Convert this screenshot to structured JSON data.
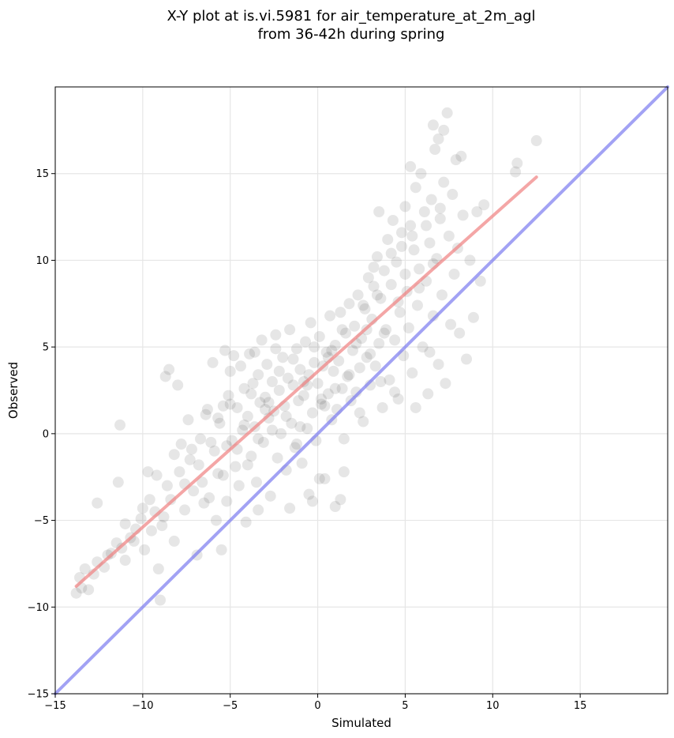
{
  "chart_data": {
    "type": "scatter",
    "title": "X-Y plot at is.vi.5981 for air_temperature_at_2m_agl",
    "subtitle": "from 36-42h during spring",
    "xlabel": "Simulated",
    "ylabel": "Observed",
    "xlim": [
      -15,
      20
    ],
    "ylim": [
      -15,
      20
    ],
    "xticks": [
      -15,
      -10,
      -5,
      0,
      5,
      10,
      15
    ],
    "yticks": [
      -15,
      -10,
      -5,
      0,
      5,
      10,
      15
    ],
    "xtick_labels": [
      "−15",
      "−10",
      "−5",
      "0",
      "5",
      "10",
      "15"
    ],
    "ytick_labels": [
      "−15",
      "−10",
      "−5",
      "0",
      "5",
      "10",
      "15"
    ],
    "grid": true,
    "point_color": "#333333",
    "regression_line": {
      "x": [
        -13.8,
        12.5
      ],
      "y": [
        -8.8,
        14.8
      ],
      "color": "#f08080"
    },
    "identity_line": {
      "x": [
        -15,
        20
      ],
      "y": [
        -15,
        20
      ],
      "color": "#7b7bf0"
    },
    "points": [
      [
        -13.8,
        -9.2
      ],
      [
        -13.5,
        -8.9
      ],
      [
        -13.3,
        -7.8
      ],
      [
        -13.1,
        -9.0
      ],
      [
        -13.6,
        -8.3
      ],
      [
        -12.8,
        -8.1
      ],
      [
        -12.6,
        -7.4
      ],
      [
        -12.2,
        -7.7
      ],
      [
        -12.6,
        -4.0
      ],
      [
        -11.8,
        -6.9
      ],
      [
        -11.5,
        -6.3
      ],
      [
        -11.2,
        -6.6
      ],
      [
        -11.4,
        -2.8
      ],
      [
        -11.3,
        0.5
      ],
      [
        -11.0,
        -5.2
      ],
      [
        -10.7,
        -6.0
      ],
      [
        -10.4,
        -5.5
      ],
      [
        -10.1,
        -4.9
      ],
      [
        -9.9,
        -6.7
      ],
      [
        -9.7,
        -2.2
      ],
      [
        -9.5,
        -5.6
      ],
      [
        -9.3,
        -4.5
      ],
      [
        -9.1,
        -7.8
      ],
      [
        -9.0,
        -9.6
      ],
      [
        -9.2,
        -2.4
      ],
      [
        -8.8,
        -4.8
      ],
      [
        -8.7,
        3.3
      ],
      [
        -8.5,
        3.7
      ],
      [
        -8.4,
        -3.8
      ],
      [
        -8.2,
        -6.2
      ],
      [
        -8.0,
        2.8
      ],
      [
        -7.9,
        -2.2
      ],
      [
        -7.8,
        -0.6
      ],
      [
        -7.6,
        -4.4
      ],
      [
        -7.4,
        0.8
      ],
      [
        -7.3,
        -1.5
      ],
      [
        -7.1,
        -3.3
      ],
      [
        -6.9,
        -7.0
      ],
      [
        -6.7,
        -0.3
      ],
      [
        -6.6,
        -2.8
      ],
      [
        -6.4,
        1.1
      ],
      [
        -6.2,
        -3.7
      ],
      [
        -6.0,
        4.1
      ],
      [
        -5.9,
        -1.0
      ],
      [
        -5.8,
        -5.0
      ],
      [
        -5.7,
        -2.3
      ],
      [
        -5.6,
        0.6
      ],
      [
        -5.5,
        -6.7
      ],
      [
        -5.4,
        1.6
      ],
      [
        -5.3,
        4.8
      ],
      [
        -5.2,
        -3.9
      ],
      [
        -5.1,
        2.2
      ],
      [
        -5.0,
        3.6
      ],
      [
        -4.9,
        -0.4
      ],
      [
        -4.8,
        4.5
      ],
      [
        -4.7,
        -1.9
      ],
      [
        -4.6,
        1.5
      ],
      [
        -4.5,
        -3.0
      ],
      [
        -4.4,
        3.9
      ],
      [
        -4.3,
        0.2
      ],
      [
        -4.2,
        2.6
      ],
      [
        -4.1,
        -5.1
      ],
      [
        -4.0,
        1.0
      ],
      [
        -3.9,
        4.6
      ],
      [
        -3.8,
        -1.3
      ],
      [
        -3.7,
        2.9
      ],
      [
        -3.6,
        0.4
      ],
      [
        -3.5,
        -2.8
      ],
      [
        -3.4,
        3.4
      ],
      [
        -3.3,
        1.8
      ],
      [
        -3.2,
        5.4
      ],
      [
        -3.1,
        -0.5
      ],
      [
        -3.0,
        2.1
      ],
      [
        -2.9,
        4.0
      ],
      [
        -2.8,
        0.9
      ],
      [
        -2.7,
        -3.6
      ],
      [
        -2.6,
        3.0
      ],
      [
        -2.5,
        1.3
      ],
      [
        -2.4,
        5.7
      ],
      [
        -2.3,
        -1.4
      ],
      [
        -2.2,
        2.5
      ],
      [
        -2.1,
        0.0
      ],
      [
        -2.0,
        4.4
      ],
      [
        -1.9,
        1.6
      ],
      [
        -1.8,
        -2.1
      ],
      [
        -1.7,
        3.2
      ],
      [
        -1.6,
        6.0
      ],
      [
        -1.5,
        0.6
      ],
      [
        -1.4,
        2.8
      ],
      [
        -1.3,
        -0.8
      ],
      [
        -1.2,
        4.9
      ],
      [
        -1.1,
        1.9
      ],
      [
        -1.0,
        3.7
      ],
      [
        -0.9,
        -1.7
      ],
      [
        -0.8,
        2.2
      ],
      [
        -0.7,
        5.3
      ],
      [
        -0.6,
        0.3
      ],
      [
        -0.5,
        3.4
      ],
      [
        -0.4,
        6.4
      ],
      [
        -0.3,
        1.2
      ],
      [
        -0.2,
        4.1
      ],
      [
        -0.1,
        -0.4
      ],
      [
        0.0,
        2.9
      ],
      [
        0.1,
        5.6
      ],
      [
        0.2,
        1.7
      ],
      [
        0.3,
        3.9
      ],
      [
        0.4,
        -2.6
      ],
      [
        0.5,
        4.7
      ],
      [
        0.6,
        2.3
      ],
      [
        0.7,
        6.8
      ],
      [
        0.8,
        0.8
      ],
      [
        0.9,
        3.6
      ],
      [
        1.0,
        5.1
      ],
      [
        1.1,
        1.4
      ],
      [
        1.2,
        4.2
      ],
      [
        1.3,
        7.0
      ],
      [
        1.4,
        2.6
      ],
      [
        1.5,
        -0.3
      ],
      [
        1.6,
        5.8
      ],
      [
        1.7,
        3.3
      ],
      [
        1.8,
        7.5
      ],
      [
        1.9,
        1.9
      ],
      [
        2.0,
        4.8
      ],
      [
        2.1,
        6.2
      ],
      [
        2.2,
        2.4
      ],
      [
        2.3,
        8.0
      ],
      [
        2.4,
        3.8
      ],
      [
        2.5,
        5.5
      ],
      [
        2.6,
        0.7
      ],
      [
        2.7,
        7.2
      ],
      [
        2.8,
        4.4
      ],
      [
        2.9,
        9.0
      ],
      [
        3.0,
        2.8
      ],
      [
        3.1,
        6.6
      ],
      [
        3.2,
        8.5
      ],
      [
        3.3,
        3.9
      ],
      [
        3.4,
        10.2
      ],
      [
        3.5,
        5.2
      ],
      [
        3.6,
        7.8
      ],
      [
        3.7,
        1.5
      ],
      [
        3.8,
        9.4
      ],
      [
        3.9,
        6.0
      ],
      [
        4.0,
        11.2
      ],
      [
        4.1,
        3.1
      ],
      [
        4.2,
        8.6
      ],
      [
        4.3,
        12.3
      ],
      [
        4.4,
        5.4
      ],
      [
        4.5,
        9.9
      ],
      [
        4.6,
        2.0
      ],
      [
        4.7,
        7.0
      ],
      [
        4.8,
        11.6
      ],
      [
        4.9,
        4.5
      ],
      [
        5.0,
        13.1
      ],
      [
        5.1,
        8.2
      ],
      [
        5.2,
        6.1
      ],
      [
        5.3,
        12.0
      ],
      [
        5.4,
        3.5
      ],
      [
        5.5,
        10.6
      ],
      [
        5.6,
        14.2
      ],
      [
        5.7,
        7.4
      ],
      [
        5.8,
        9.5
      ],
      [
        5.9,
        15.0
      ],
      [
        6.0,
        5.0
      ],
      [
        6.1,
        12.8
      ],
      [
        6.2,
        8.8
      ],
      [
        6.3,
        2.3
      ],
      [
        6.4,
        11.0
      ],
      [
        6.5,
        13.5
      ],
      [
        6.6,
        6.8
      ],
      [
        6.7,
        16.4
      ],
      [
        6.8,
        10.1
      ],
      [
        6.9,
        4.0
      ],
      [
        7.0,
        12.4
      ],
      [
        7.1,
        8.0
      ],
      [
        7.2,
        14.5
      ],
      [
        7.3,
        2.9
      ],
      [
        7.4,
        18.5
      ],
      [
        7.5,
        11.4
      ],
      [
        7.6,
        6.3
      ],
      [
        7.7,
        13.8
      ],
      [
        7.8,
        9.2
      ],
      [
        7.9,
        15.8
      ],
      [
        8.0,
        10.7
      ],
      [
        8.1,
        5.8
      ],
      [
        8.3,
        12.6
      ],
      [
        8.5,
        4.3
      ],
      [
        8.7,
        10.0
      ],
      [
        8.9,
        6.7
      ],
      [
        9.1,
        12.8
      ],
      [
        9.3,
        8.8
      ],
      [
        9.5,
        13.2
      ],
      [
        11.3,
        15.1
      ],
      [
        11.4,
        15.6
      ],
      [
        12.5,
        16.9
      ],
      [
        6.9,
        17.0
      ],
      [
        6.6,
        17.8
      ],
      [
        7.2,
        17.5
      ],
      [
        8.2,
        16.0
      ],
      [
        5.3,
        15.4
      ],
      [
        3.5,
        12.8
      ],
      [
        -0.5,
        -3.5
      ],
      [
        -0.3,
        -3.9
      ],
      [
        1.0,
        -4.2
      ],
      [
        1.5,
        -2.2
      ],
      [
        1.3,
        -3.8
      ],
      [
        -1.6,
        -4.3
      ],
      [
        -3.4,
        -4.4
      ],
      [
        0.1,
        -2.6
      ],
      [
        -12.0,
        -7.0
      ],
      [
        -11.0,
        -7.3
      ],
      [
        -10.5,
        -6.2
      ],
      [
        -10.0,
        -4.3
      ],
      [
        -9.6,
        -3.8
      ],
      [
        -8.9,
        -5.3
      ],
      [
        -8.6,
        -3.0
      ],
      [
        -8.2,
        -1.2
      ],
      [
        -7.6,
        -2.9
      ],
      [
        -7.2,
        -0.9
      ],
      [
        -6.8,
        -1.8
      ],
      [
        -6.5,
        -4.0
      ],
      [
        -6.1,
        -0.5
      ],
      [
        -5.7,
        0.9
      ],
      [
        -5.4,
        -2.4
      ],
      [
        -5.0,
        1.7
      ],
      [
        -4.6,
        -0.9
      ],
      [
        -4.2,
        0.5
      ],
      [
        -3.8,
        2.3
      ],
      [
        -3.4,
        -0.3
      ],
      [
        -3.0,
        1.4
      ],
      [
        -2.6,
        0.2
      ],
      [
        -2.2,
        3.6
      ],
      [
        -1.8,
        1.0
      ],
      [
        -1.4,
        4.3
      ],
      [
        -1.0,
        0.4
      ],
      [
        -0.6,
        2.8
      ],
      [
        -0.2,
        5.0
      ],
      [
        0.2,
        2.0
      ],
      [
        0.6,
        4.4
      ],
      [
        1.0,
        2.6
      ],
      [
        1.4,
        6.0
      ],
      [
        1.8,
        3.4
      ],
      [
        2.2,
        5.2
      ],
      [
        2.6,
        7.4
      ],
      [
        3.0,
        4.6
      ],
      [
        3.4,
        8.0
      ],
      [
        3.8,
        5.8
      ],
      [
        4.2,
        10.4
      ],
      [
        4.6,
        7.6
      ],
      [
        5.0,
        9.2
      ],
      [
        5.4,
        11.4
      ],
      [
        5.8,
        8.4
      ],
      [
        6.2,
        12.0
      ],
      [
        6.6,
        9.8
      ],
      [
        7.0,
        13.0
      ],
      [
        0.4,
        1.6
      ],
      [
        0.8,
        4.8
      ],
      [
        -0.8,
        3.0
      ],
      [
        -1.2,
        -0.6
      ],
      [
        2.4,
        1.2
      ],
      [
        2.8,
        6.0
      ],
      [
        -2.4,
        4.9
      ],
      [
        -2.8,
        1.8
      ],
      [
        3.2,
        9.6
      ],
      [
        3.6,
        3.0
      ],
      [
        -3.6,
        4.7
      ],
      [
        -4.0,
        -1.8
      ],
      [
        4.4,
        2.4
      ],
      [
        4.8,
        10.8
      ],
      [
        -5.2,
        -0.7
      ],
      [
        -6.3,
        1.4
      ],
      [
        5.6,
        1.5
      ],
      [
        6.4,
        4.7
      ]
    ]
  }
}
